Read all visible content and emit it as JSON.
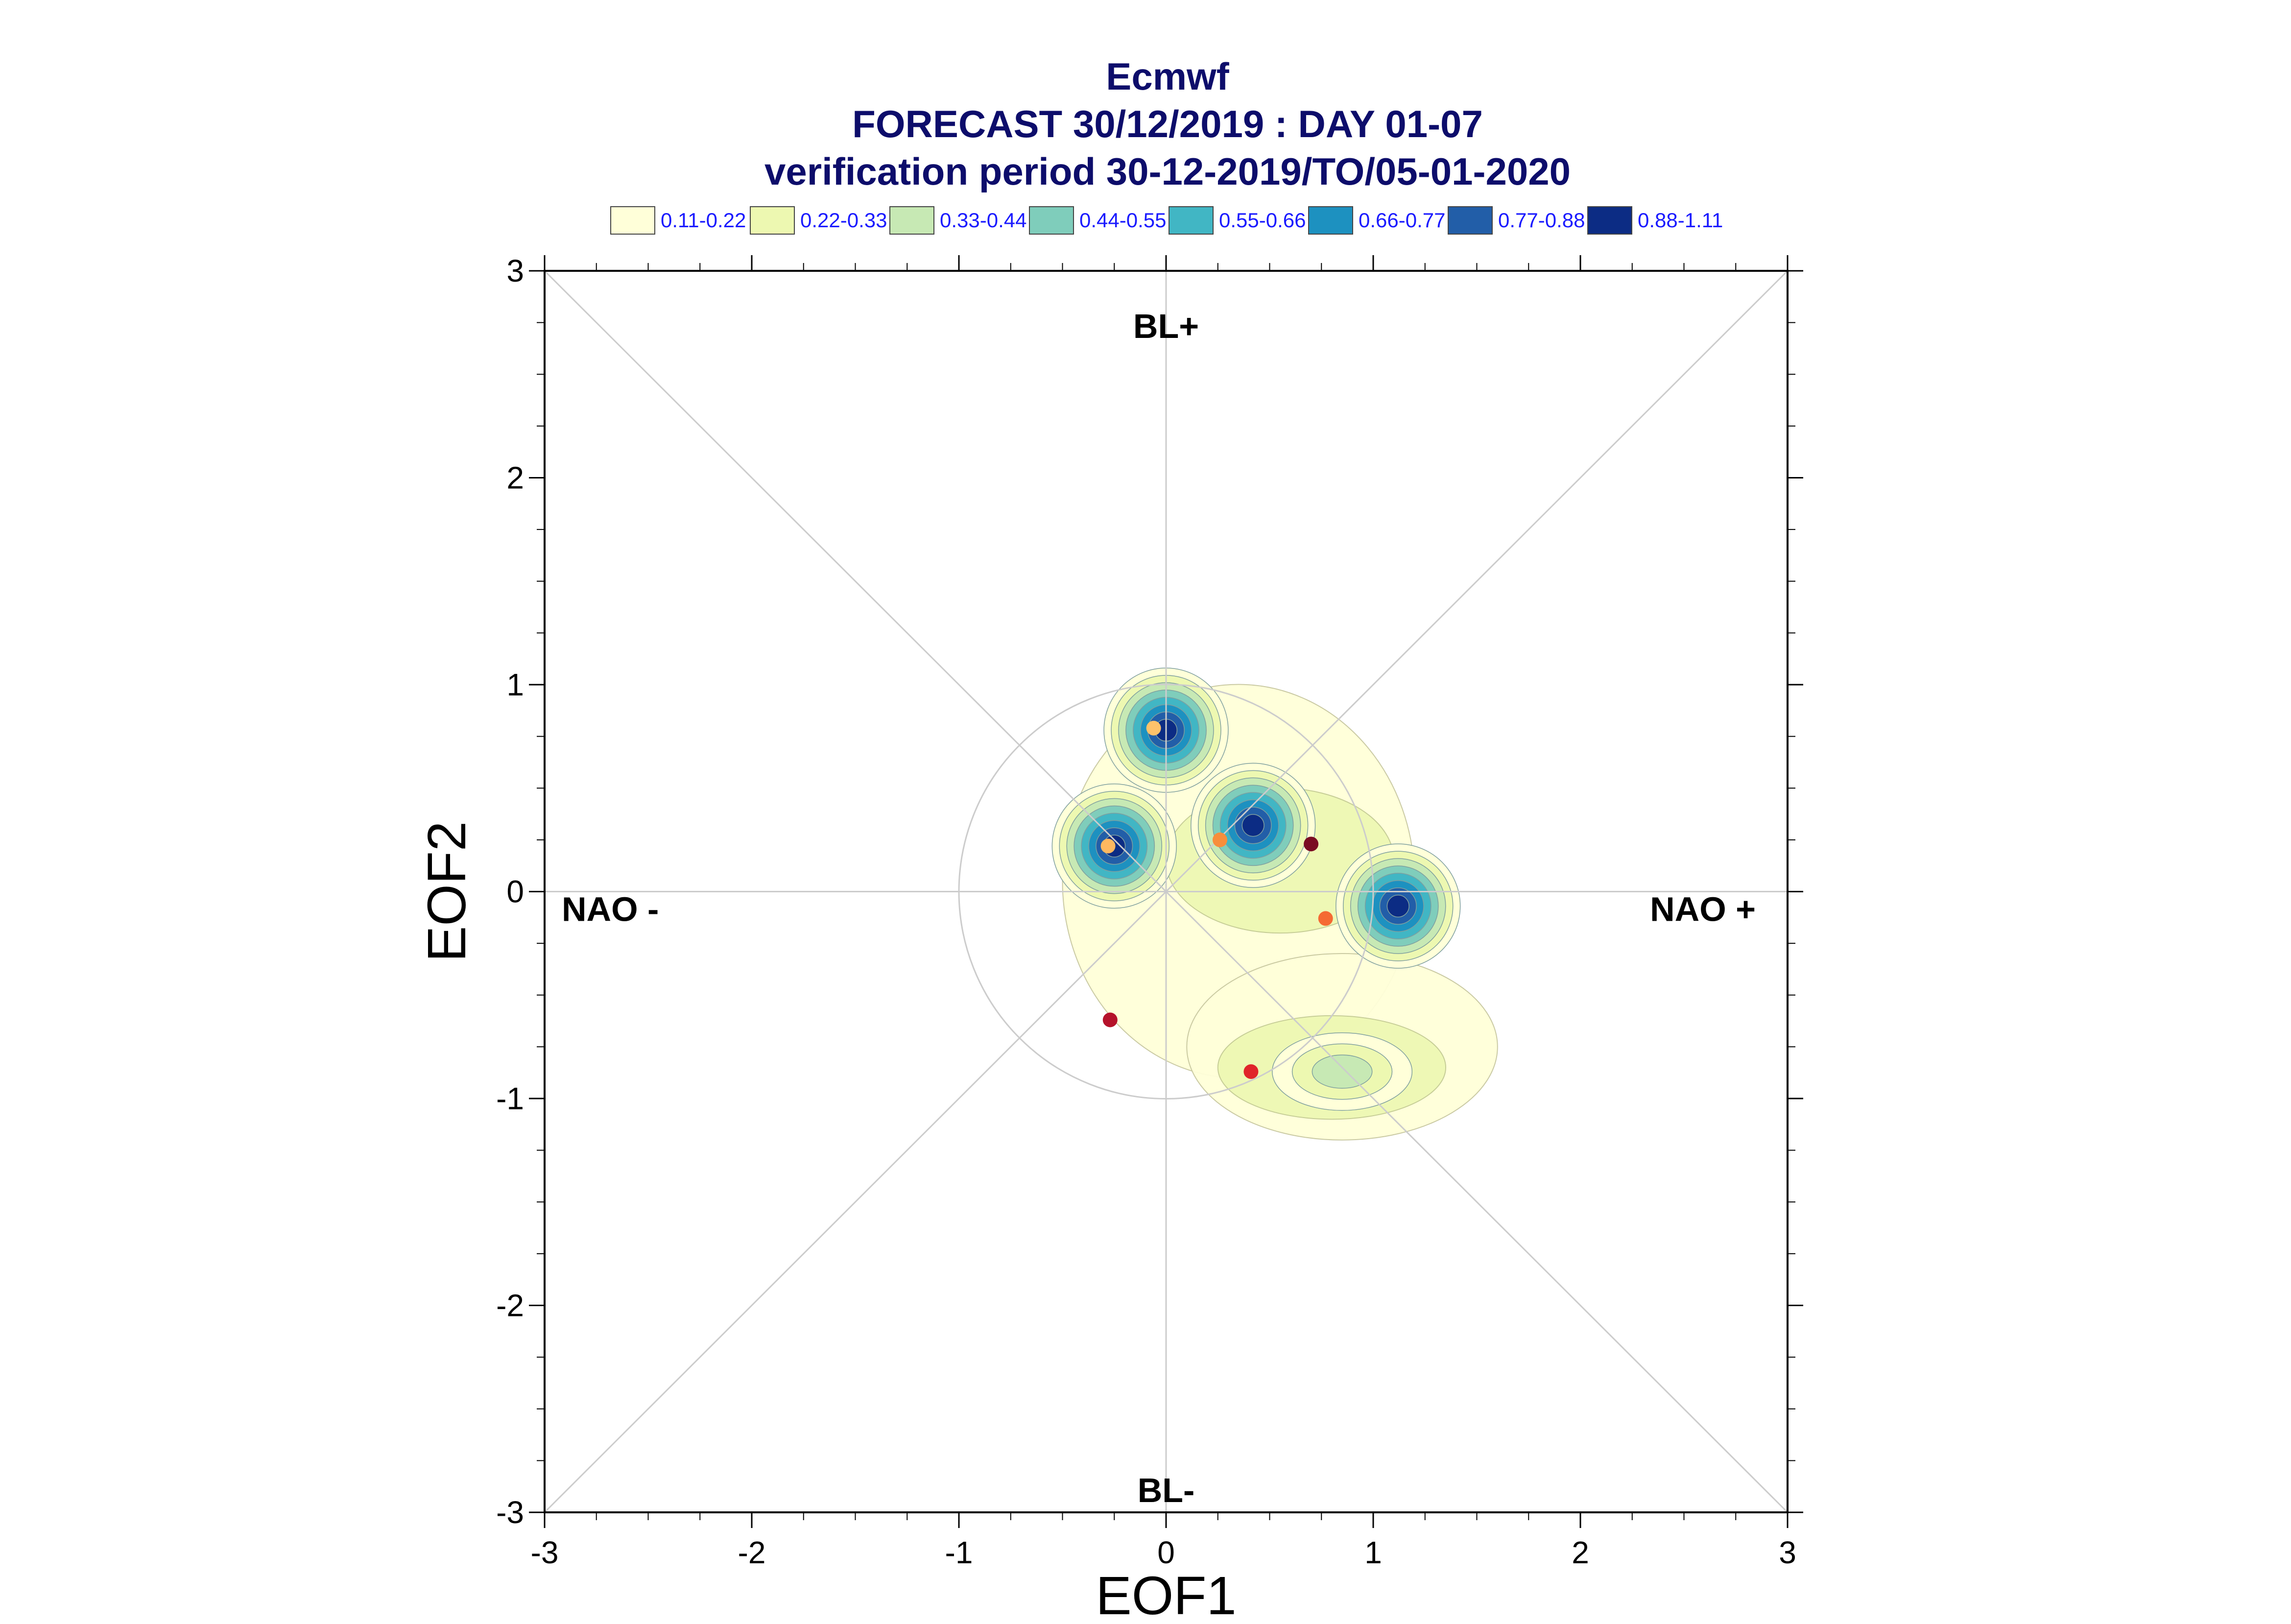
{
  "chart_data": {
    "type": "scatter",
    "title_lines": [
      "Ecmwf",
      "FORECAST 30/12/2019 : DAY 01-07",
      "verification period 30-12-2019/TO/05-01-2020"
    ],
    "xlabel": "EOF1",
    "ylabel": "EOF2",
    "xlim": [
      -3,
      3
    ],
    "ylim": [
      -3,
      3
    ],
    "xticks": [
      -3,
      -2,
      -1,
      0,
      1,
      2,
      3
    ],
    "yticks": [
      -3,
      -2,
      -1,
      0,
      1,
      2,
      3
    ],
    "grid": false,
    "legend_position": "top",
    "regime_labels": {
      "top": "BL+",
      "bottom": "BL-",
      "left": "NAO -",
      "right": "NAO +"
    },
    "legend": [
      {
        "label": "0.11-0.22",
        "color": "#ffffd9"
      },
      {
        "label": "0.22-0.33",
        "color": "#edf8b1"
      },
      {
        "label": "0.33-0.44",
        "color": "#c7e9b4"
      },
      {
        "label": "0.44-0.55",
        "color": "#7fcdbb"
      },
      {
        "label": "0.55-0.66",
        "color": "#41b6c4"
      },
      {
        "label": "0.66-0.77",
        "color": "#1d91c0"
      },
      {
        "label": "0.77-0.88",
        "color": "#225ea8"
      },
      {
        "label": "0.88-1.11",
        "color": "#0c2c84"
      }
    ],
    "unit_circle_radius": 1,
    "density_peaks": [
      {
        "x": 0.0,
        "y": 0.78,
        "peak_level": 8
      },
      {
        "x": -0.25,
        "y": 0.22,
        "peak_level": 8
      },
      {
        "x": 0.42,
        "y": 0.32,
        "peak_level": 8
      },
      {
        "x": 1.12,
        "y": -0.07,
        "peak_level": 8
      },
      {
        "x": 0.85,
        "y": -0.87,
        "peak_level": 3
      }
    ],
    "points": [
      {
        "x": -0.06,
        "y": 0.79,
        "color": "#fdc26b"
      },
      {
        "x": -0.28,
        "y": 0.22,
        "color": "#fdb860"
      },
      {
        "x": 0.26,
        "y": 0.25,
        "color": "#f88e3b"
      },
      {
        "x": 0.7,
        "y": 0.23,
        "color": "#7a0c22"
      },
      {
        "x": 0.77,
        "y": -0.13,
        "color": "#f56a33"
      },
      {
        "x": -0.27,
        "y": -0.62,
        "color": "#b5122b"
      },
      {
        "x": 0.41,
        "y": -0.87,
        "color": "#e0242a"
      }
    ]
  }
}
